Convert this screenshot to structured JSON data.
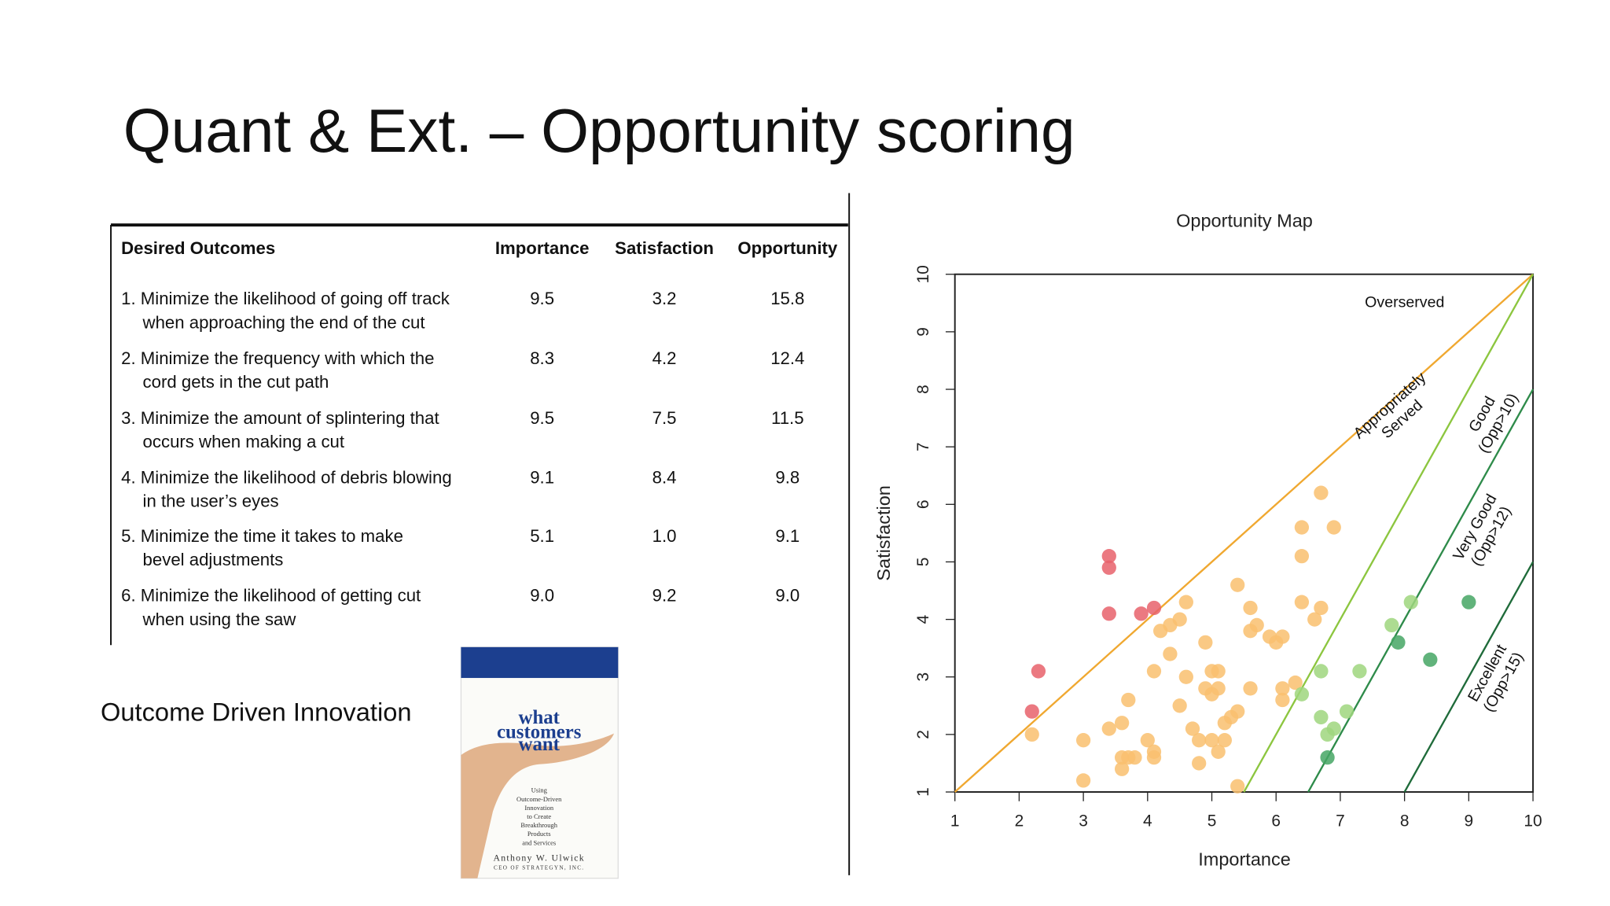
{
  "title": "Quant  & Ext. – Opportunity scoring",
  "table": {
    "headers": [
      "Desired Outcomes",
      "Importance",
      "Satisfaction",
      "Opportunity"
    ],
    "rows": [
      [
        [
          "1. Minimize the likelihood of going off track",
          "when approaching the end of the cut"
        ],
        "9.5",
        "3.2",
        "15.8"
      ],
      [
        [
          "2. Minimize the frequency with which the",
          "cord gets in the cut path"
        ],
        "8.3",
        "4.2",
        "12.4"
      ],
      [
        [
          "3. Minimize the amount of splintering that",
          "occurs when making a cut"
        ],
        "9.5",
        "7.5",
        "11.5"
      ],
      [
        [
          "4. Minimize the likelihood of debris blowing",
          "in the user’s eyes"
        ],
        "9.1",
        "8.4",
        "9.8"
      ],
      [
        [
          "5. Minimize the time it takes to make",
          "bevel adjustments"
        ],
        "5.1",
        "1.0",
        "9.1"
      ],
      [
        [
          "6. Minimize the likelihood of getting cut",
          "when using the saw"
        ],
        "9.0",
        "9.2",
        "9.0"
      ]
    ]
  },
  "caption": "Outcome Driven Innovation",
  "book": {
    "title_lines": [
      "what",
      "customers",
      "want"
    ],
    "subtitle_lines": [
      "Using",
      "Outcome-Driven",
      "Innovation",
      "to Create",
      "Breakthrough",
      "Products",
      "and Services"
    ],
    "author": "Anthony W. Ulwick",
    "affiliation": "CEO OF STRATEGYN, INC."
  },
  "chart_data": {
    "type": "scatter",
    "title": "Opportunity Map",
    "x_label": "Importance",
    "y_label": "Satisfaction",
    "xlim": [
      1,
      10
    ],
    "ylim": [
      1,
      10
    ],
    "xticks": [
      1,
      2,
      3,
      4,
      5,
      6,
      7,
      8,
      9,
      10
    ],
    "yticks": [
      1,
      2,
      3,
      4,
      5,
      6,
      7,
      8,
      9,
      10
    ],
    "region_label": {
      "text": "Overserved",
      "color": "#d9303a"
    },
    "boundaries": [
      {
        "label_lines": [
          "Appropriately",
          "Served"
        ],
        "color": "#f0a830",
        "x": [
          1,
          10
        ],
        "y": [
          1,
          10
        ]
      },
      {
        "label_lines": [
          "Good",
          "(Opp>10)"
        ],
        "color": "#8cc63f",
        "x": [
          5.5,
          10
        ],
        "y": [
          1,
          10
        ]
      },
      {
        "label_lines": [
          "Very Good",
          "(Opp>12)"
        ],
        "color": "#2e8b4a",
        "x": [
          6.5,
          10
        ],
        "y": [
          1,
          8
        ]
      },
      {
        "label_lines": [
          "Excellent",
          "(Opp>15)"
        ],
        "color": "#1f6b3a",
        "x": [
          8,
          10
        ],
        "y": [
          1,
          5
        ]
      }
    ],
    "series": [
      {
        "color": "#e8616b",
        "x": [
          3.4,
          3.4,
          3.4,
          3.9,
          4.1,
          2.3,
          2.2
        ],
        "values": [
          5.1,
          4.9,
          4.1,
          4.1,
          4.2,
          3.1,
          2.4
        ]
      },
      {
        "color": "#f9bf6e",
        "x": [
          6.7,
          6.4,
          6.9,
          6.4,
          5.4,
          4.6,
          5.6,
          6.4,
          6.7,
          6.6,
          4.5,
          4.35,
          4.2,
          5.6,
          5.7,
          5.9,
          6.0,
          6.1,
          4.9,
          4.35,
          4.1,
          4.6,
          5.0,
          5.1,
          4.9,
          5.1,
          5.0,
          5.6,
          6.1,
          6.3,
          6.1,
          3.7,
          4.5,
          5.4,
          5.3,
          5.2,
          3.6,
          3.4,
          4.7,
          4.8,
          5.0,
          5.2,
          3.0,
          2.2,
          4.0,
          4.1,
          3.6,
          3.7,
          3.8,
          4.1,
          5.1,
          4.8,
          3.6,
          3.0,
          5.4
        ],
        "values": [
          6.2,
          5.6,
          5.6,
          5.1,
          4.6,
          4.3,
          4.2,
          4.3,
          4.2,
          4.0,
          4.0,
          3.9,
          3.8,
          3.8,
          3.9,
          3.7,
          3.6,
          3.7,
          3.6,
          3.4,
          3.1,
          3.0,
          3.1,
          3.1,
          2.8,
          2.8,
          2.7,
          2.8,
          2.8,
          2.9,
          2.6,
          2.6,
          2.5,
          2.4,
          2.3,
          2.2,
          2.2,
          2.1,
          2.1,
          1.9,
          1.9,
          1.9,
          1.9,
          2.0,
          1.9,
          1.7,
          1.6,
          1.6,
          1.6,
          1.6,
          1.7,
          1.5,
          1.4,
          1.2,
          1.1
        ]
      },
      {
        "color": "#9fd67e",
        "x": [
          6.7,
          6.4,
          6.7,
          6.9,
          6.8,
          7.1,
          7.3,
          7.8,
          8.1
        ],
        "values": [
          3.1,
          2.7,
          2.3,
          2.1,
          2.0,
          2.4,
          3.1,
          3.9,
          4.3
        ]
      },
      {
        "color": "#45a664",
        "x": [
          7.9,
          8.4,
          9.0,
          6.8
        ],
        "values": [
          3.6,
          3.3,
          4.3,
          1.6
        ]
      }
    ]
  }
}
